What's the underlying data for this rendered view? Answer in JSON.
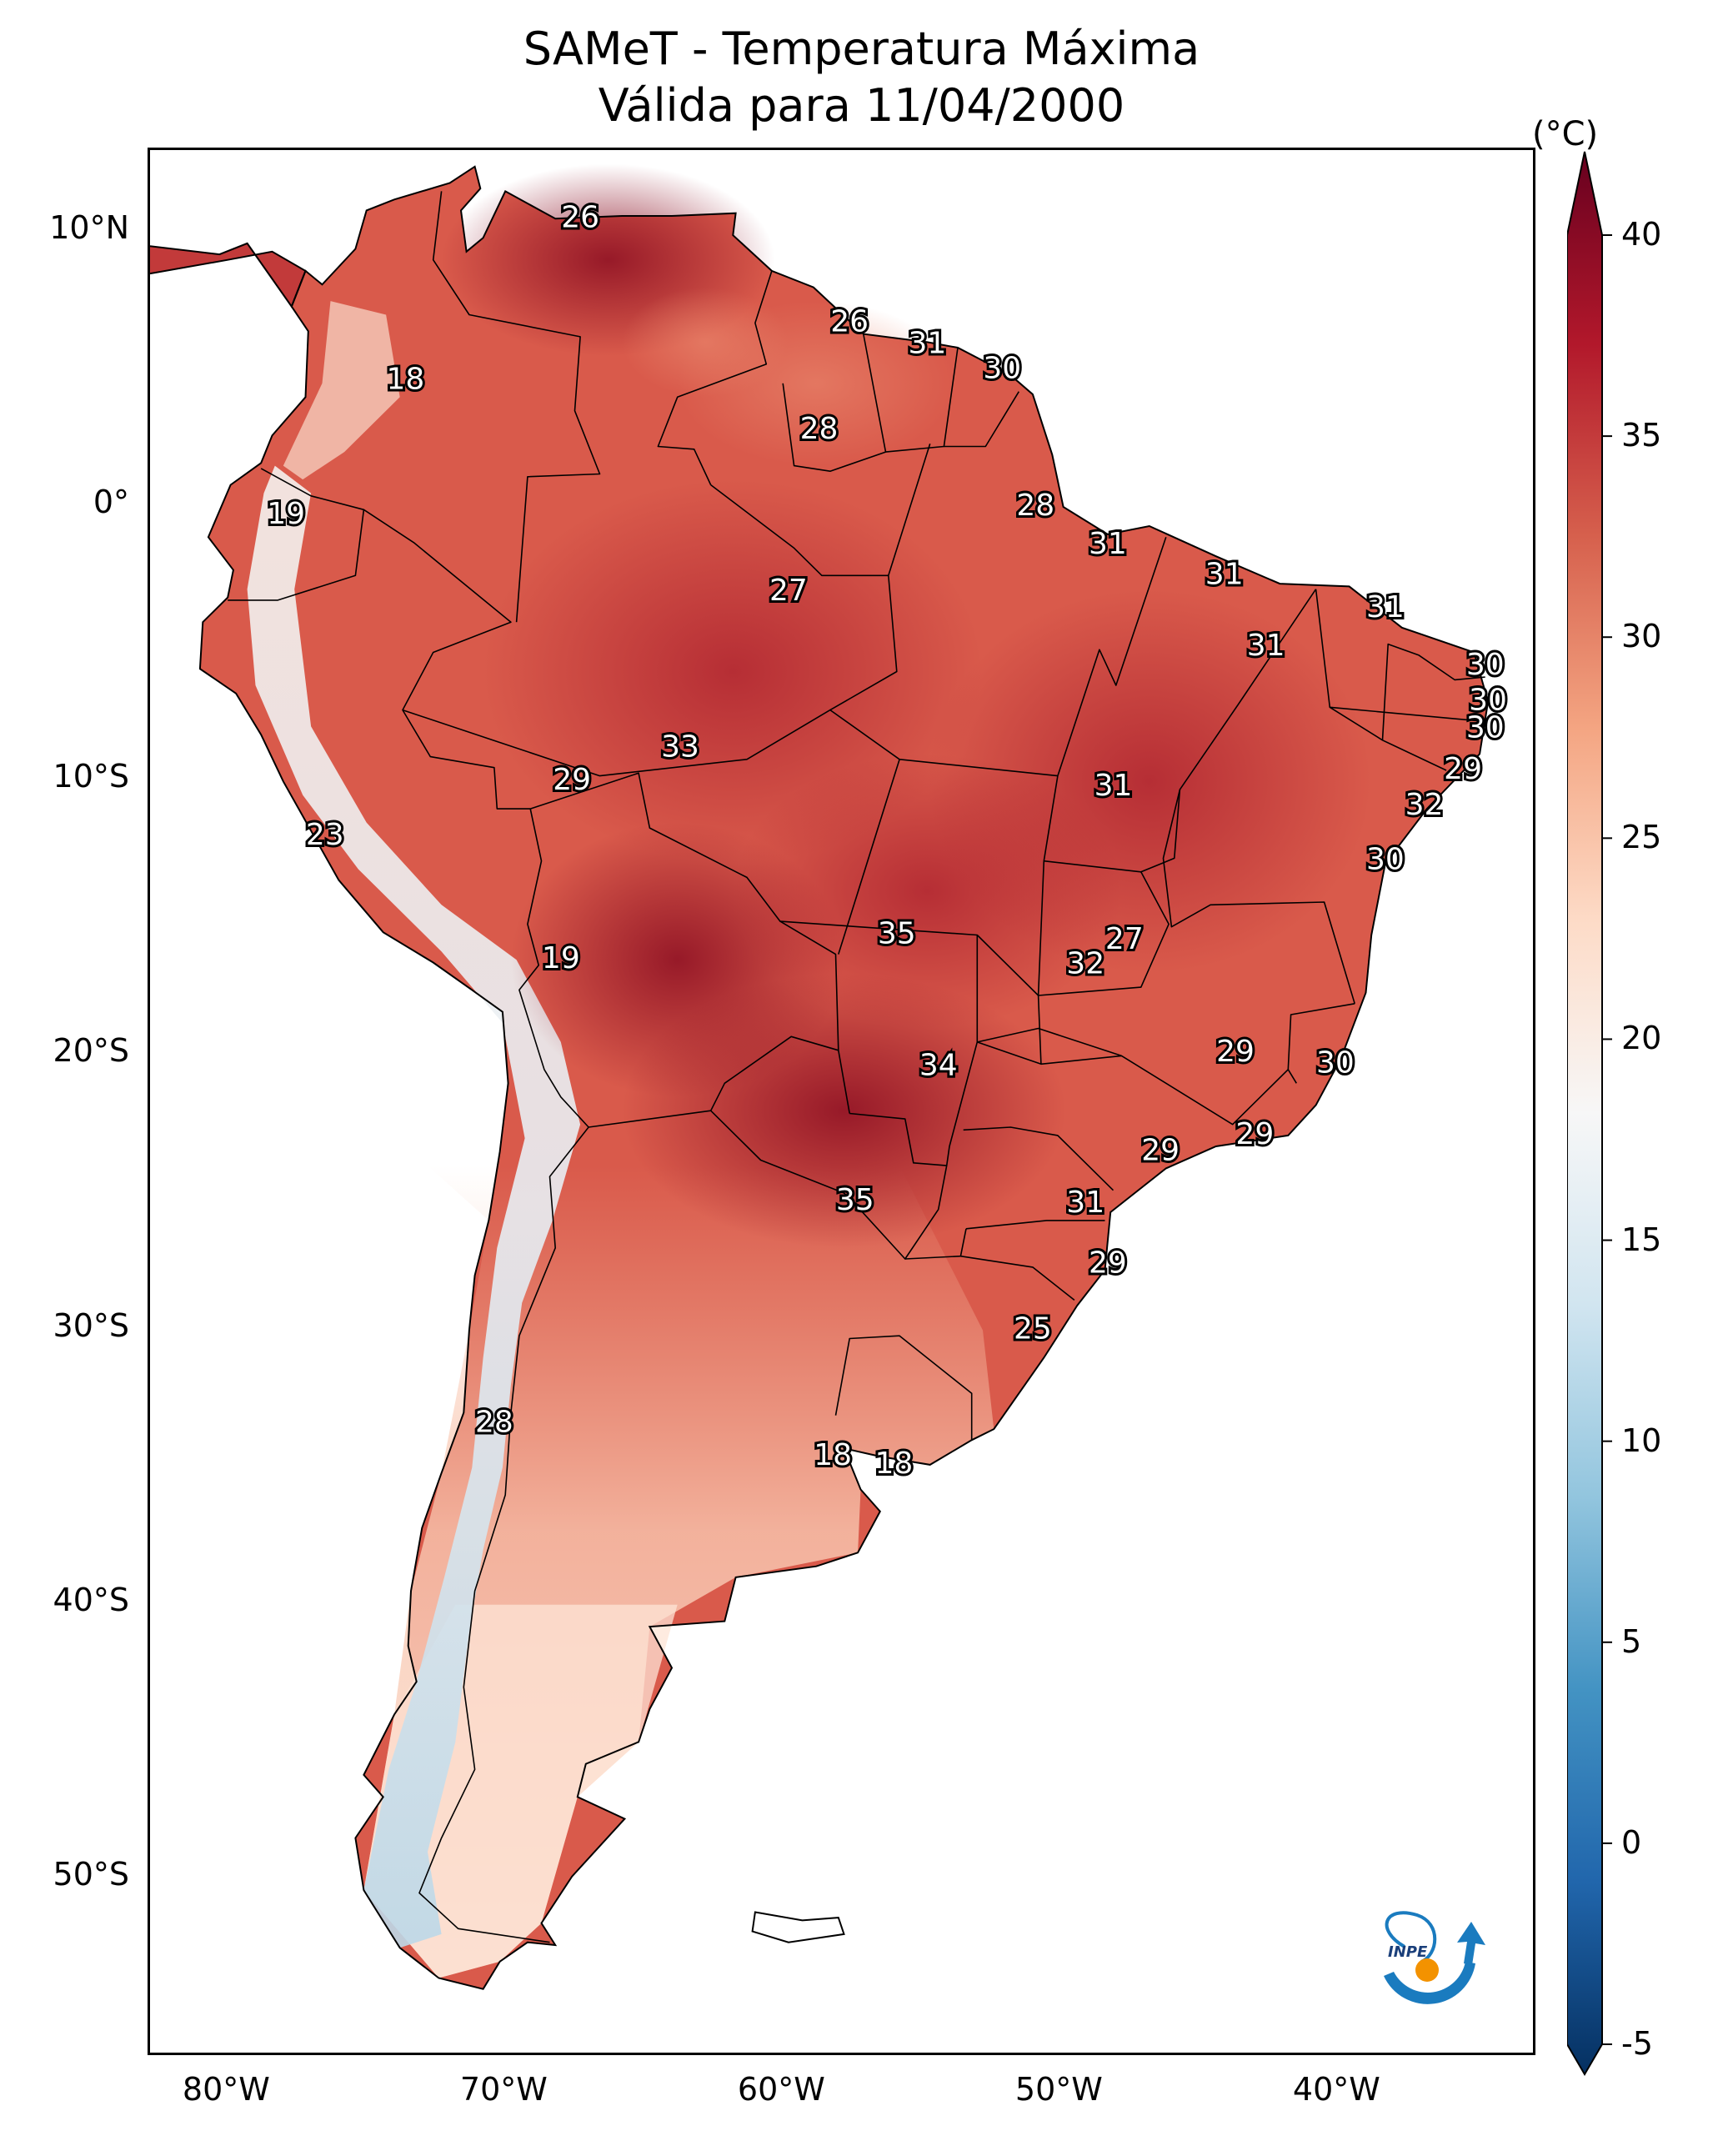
{
  "title": {
    "line1": "SAMeT - Temperatura Máxima",
    "line2": "Válida para 11/04/2000"
  },
  "map": {
    "extent": {
      "lon": [
        -83,
        -33
      ],
      "lat": [
        -56.5,
        13
      ]
    },
    "lat_ticks": [
      {
        "value": 10,
        "label": "10°N"
      },
      {
        "value": 0,
        "label": "0°"
      },
      {
        "value": -10,
        "label": "10°S"
      },
      {
        "value": -20,
        "label": "20°S"
      },
      {
        "value": -30,
        "label": "30°S"
      },
      {
        "value": -40,
        "label": "40°S"
      },
      {
        "value": -50,
        "label": "50°S"
      }
    ],
    "lon_ticks": [
      {
        "value": -80,
        "label": "80°W"
      },
      {
        "value": -70,
        "label": "70°W"
      },
      {
        "value": -60,
        "label": "60°W"
      },
      {
        "value": -50,
        "label": "50°W"
      },
      {
        "value": -40,
        "label": "40°W"
      }
    ],
    "city_values": [
      {
        "lon": -67.5,
        "lat": 10.5,
        "text": "26"
      },
      {
        "lon": -57.8,
        "lat": 6.7,
        "text": "26"
      },
      {
        "lon": -55.0,
        "lat": 5.9,
        "text": "31"
      },
      {
        "lon": -52.3,
        "lat": 5.0,
        "text": "30"
      },
      {
        "lon": -73.8,
        "lat": 4.6,
        "text": "18"
      },
      {
        "lon": -58.9,
        "lat": 2.8,
        "text": "28"
      },
      {
        "lon": -51.1,
        "lat": 0.0,
        "text": "28"
      },
      {
        "lon": -78.1,
        "lat": -0.3,
        "text": "19"
      },
      {
        "lon": -48.5,
        "lat": -1.4,
        "text": "31"
      },
      {
        "lon": -44.3,
        "lat": -2.5,
        "text": "31"
      },
      {
        "lon": -60.0,
        "lat": -3.1,
        "text": "27"
      },
      {
        "lon": -38.5,
        "lat": -3.7,
        "text": "31"
      },
      {
        "lon": -42.8,
        "lat": -5.1,
        "text": "31"
      },
      {
        "lon": -34.9,
        "lat": -5.8,
        "text": "30"
      },
      {
        "lon": -34.8,
        "lat": -7.1,
        "text": "30"
      },
      {
        "lon": -34.9,
        "lat": -8.1,
        "text": "30"
      },
      {
        "lon": -63.9,
        "lat": -8.8,
        "text": "33"
      },
      {
        "lon": -35.7,
        "lat": -9.6,
        "text": "29"
      },
      {
        "lon": -67.8,
        "lat": -10.0,
        "text": "29"
      },
      {
        "lon": -48.3,
        "lat": -10.2,
        "text": "31"
      },
      {
        "lon": -37.1,
        "lat": -10.9,
        "text": "32"
      },
      {
        "lon": -76.7,
        "lat": -12.0,
        "text": "23"
      },
      {
        "lon": -38.5,
        "lat": -12.9,
        "text": "30"
      },
      {
        "lon": -56.1,
        "lat": -15.6,
        "text": "35"
      },
      {
        "lon": -47.9,
        "lat": -15.8,
        "text": "27"
      },
      {
        "lon": -49.3,
        "lat": -16.7,
        "text": "32"
      },
      {
        "lon": -68.2,
        "lat": -16.5,
        "text": "19"
      },
      {
        "lon": -43.9,
        "lat": -19.9,
        "text": "29"
      },
      {
        "lon": -40.3,
        "lat": -20.3,
        "text": "30"
      },
      {
        "lon": -54.6,
        "lat": -20.4,
        "text": "34"
      },
      {
        "lon": -43.2,
        "lat": -22.9,
        "text": "29"
      },
      {
        "lon": -46.6,
        "lat": -23.5,
        "text": "29"
      },
      {
        "lon": -57.6,
        "lat": -25.3,
        "text": "35"
      },
      {
        "lon": -49.3,
        "lat": -25.4,
        "text": "31"
      },
      {
        "lon": -48.5,
        "lat": -27.6,
        "text": "29"
      },
      {
        "lon": -51.2,
        "lat": -30.0,
        "text": "25"
      },
      {
        "lon": -70.6,
        "lat": -33.4,
        "text": "28"
      },
      {
        "lon": -58.4,
        "lat": -34.6,
        "text": "18"
      },
      {
        "lon": -56.2,
        "lat": -34.9,
        "text": "18"
      }
    ]
  },
  "colorbar": {
    "unit": "(°C)",
    "min": -5,
    "max": 40,
    "ticks": [
      {
        "value": 40,
        "label": "40"
      },
      {
        "value": 35,
        "label": "35"
      },
      {
        "value": 30,
        "label": "30"
      },
      {
        "value": 25,
        "label": "25"
      },
      {
        "value": 20,
        "label": "20"
      },
      {
        "value": 15,
        "label": "15"
      },
      {
        "value": 10,
        "label": "10"
      },
      {
        "value": 5,
        "label": "5"
      },
      {
        "value": 0,
        "label": "0"
      },
      {
        "value": -5,
        "label": "-5"
      }
    ],
    "colors": [
      "#053061",
      "#2166ac",
      "#4393c3",
      "#92c5de",
      "#d1e5f0",
      "#f7f7f7",
      "#fddbc7",
      "#f4a582",
      "#d6604d",
      "#b2182b",
      "#67001f"
    ]
  },
  "logo": {
    "text": "INPE"
  }
}
